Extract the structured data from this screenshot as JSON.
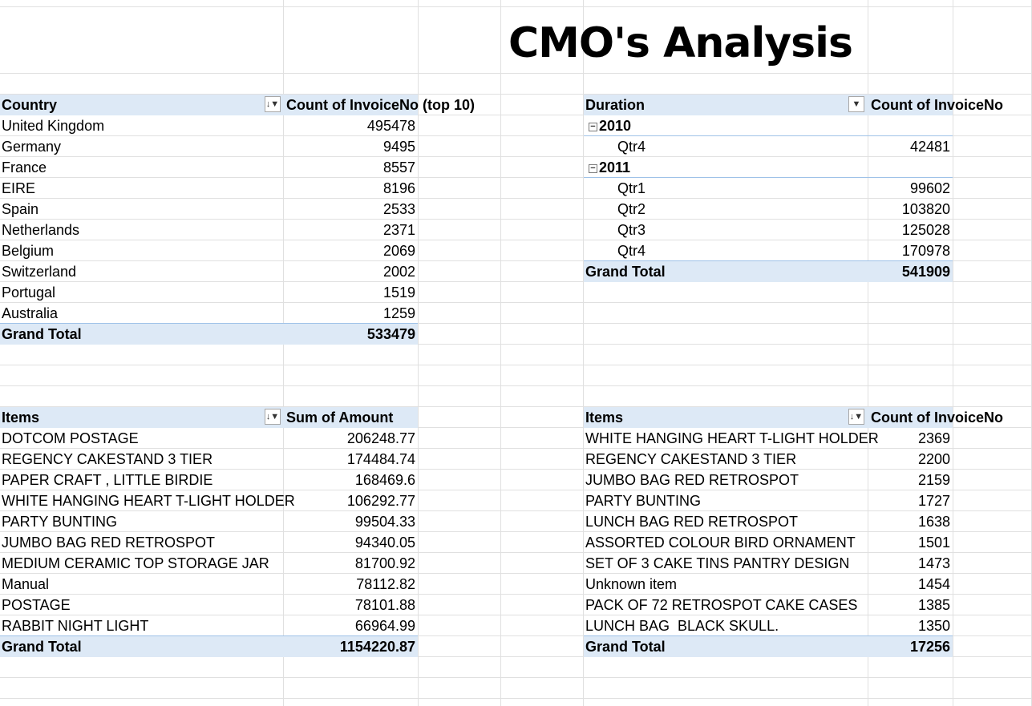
{
  "sheet": {
    "title": "CMO's Analysis"
  },
  "country_pivot": {
    "row_header": "Country",
    "value_header": "Count of InvoiceNo (top 10)",
    "filter_icon": "sort-filter-icon",
    "rows": [
      {
        "label": "United Kingdom",
        "value": "495478"
      },
      {
        "label": "Germany",
        "value": "9495"
      },
      {
        "label": "France",
        "value": "8557"
      },
      {
        "label": "EIRE",
        "value": "8196"
      },
      {
        "label": "Spain",
        "value": "2533"
      },
      {
        "label": "Netherlands",
        "value": "2371"
      },
      {
        "label": "Belgium",
        "value": "2069"
      },
      {
        "label": "Switzerland",
        "value": "2002"
      },
      {
        "label": "Portugal",
        "value": "1519"
      },
      {
        "label": "Australia",
        "value": "1259"
      }
    ],
    "total_label": "Grand Total",
    "total_value": "533479"
  },
  "duration_pivot": {
    "row_header": "Duration",
    "value_header": "Count of InvoiceNo",
    "dropdown_icon": "dropdown-arrow-icon",
    "collapse_icon": "collapse-minus-icon",
    "year_2010": {
      "label": "2010"
    },
    "year_2010_rows": [
      {
        "label": "Qtr4",
        "value": "42481"
      }
    ],
    "year_2011": {
      "label": "2011"
    },
    "year_2011_rows": [
      {
        "label": "Qtr1",
        "value": "99602"
      },
      {
        "label": "Qtr2",
        "value": "103820"
      },
      {
        "label": "Qtr3",
        "value": "125028"
      },
      {
        "label": "Qtr4",
        "value": "170978"
      }
    ],
    "total_label": "Grand Total",
    "total_value": "541909"
  },
  "amount_pivot": {
    "row_header": "Items",
    "value_header": "Sum of Amount",
    "filter_icon": "sort-filter-icon",
    "rows": [
      {
        "label": "DOTCOM POSTAGE",
        "value": "206248.77"
      },
      {
        "label": "REGENCY CAKESTAND 3 TIER",
        "value": "174484.74"
      },
      {
        "label": "PAPER CRAFT , LITTLE BIRDIE",
        "value": "168469.6"
      },
      {
        "label": "WHITE HANGING HEART T-LIGHT HOLDER",
        "value": "106292.77"
      },
      {
        "label": "PARTY BUNTING",
        "value": "99504.33"
      },
      {
        "label": "JUMBO BAG RED RETROSPOT",
        "value": "94340.05"
      },
      {
        "label": "MEDIUM CERAMIC TOP STORAGE JAR",
        "value": "81700.92"
      },
      {
        "label": "Manual",
        "value": "78112.82"
      },
      {
        "label": "POSTAGE",
        "value": "78101.88"
      },
      {
        "label": "RABBIT NIGHT LIGHT",
        "value": "66964.99"
      }
    ],
    "total_label": "Grand Total",
    "total_value": "1154220.87"
  },
  "count_items_pivot": {
    "row_header": "Items",
    "value_header": "Count of InvoiceNo",
    "filter_icon": "sort-filter-icon",
    "rows": [
      {
        "label": "WHITE HANGING HEART T-LIGHT HOLDER",
        "value": "2369"
      },
      {
        "label": "REGENCY CAKESTAND 3 TIER",
        "value": "2200"
      },
      {
        "label": "JUMBO BAG RED RETROSPOT",
        "value": "2159"
      },
      {
        "label": "PARTY BUNTING",
        "value": "1727"
      },
      {
        "label": "LUNCH BAG RED RETROSPOT",
        "value": "1638"
      },
      {
        "label": "ASSORTED COLOUR BIRD ORNAMENT",
        "value": "1501"
      },
      {
        "label": "SET OF 3 CAKE TINS PANTRY DESIGN",
        "value": "1473"
      },
      {
        "label": "Unknown item",
        "value": "1454"
      },
      {
        "label": "PACK OF 72 RETROSPOT CAKE CASES",
        "value": "1385"
      },
      {
        "label": "LUNCH BAG  BLACK SKULL.",
        "value": "1350"
      }
    ],
    "total_label": "Grand Total",
    "total_value": "17256"
  },
  "colors": {
    "pivot_header_fill": "#dde9f6",
    "pivot_border": "#9fc2e8",
    "gridline": "#e0e0e0"
  }
}
